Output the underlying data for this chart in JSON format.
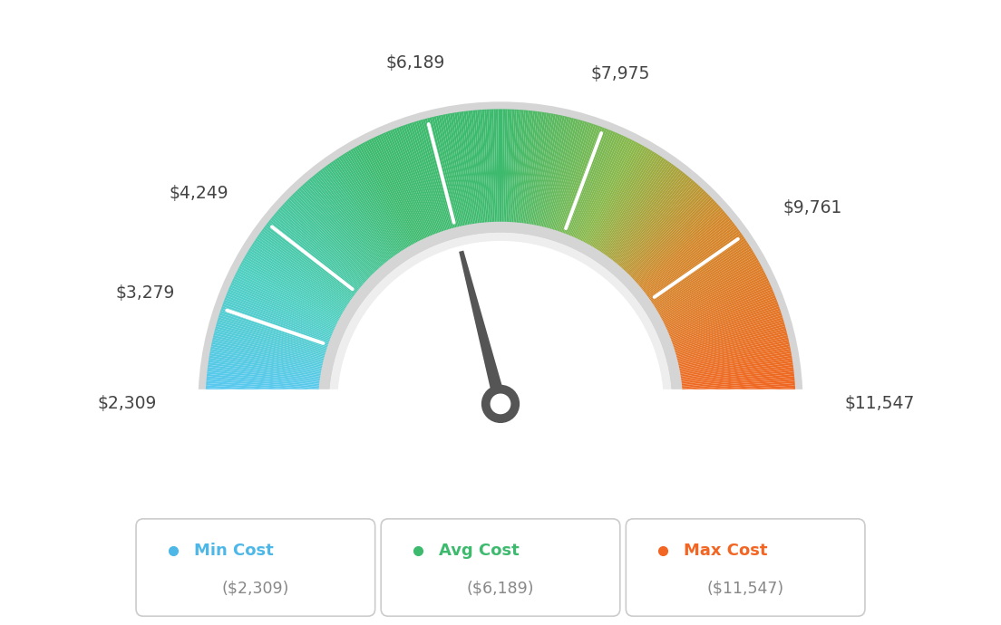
{
  "min_val": 2309,
  "avg_val": 6189,
  "max_val": 11547,
  "tick_labels": [
    "$2,309",
    "$3,279",
    "$4,249",
    "$6,189",
    "$7,975",
    "$9,761",
    "$11,547"
  ],
  "tick_values": [
    2309,
    3279,
    4249,
    6189,
    7975,
    9761,
    11547
  ],
  "legend_labels": [
    "Min Cost",
    "Avg Cost",
    "Max Cost"
  ],
  "legend_values": [
    "($2,309)",
    "($6,189)",
    "($11,547)"
  ],
  "legend_colors": [
    "#4db8e8",
    "#3dba6e",
    "#f26522"
  ],
  "color_stops": [
    [
      0.0,
      "#5bc8f5"
    ],
    [
      0.15,
      "#4ecfc0"
    ],
    [
      0.35,
      "#3dba6e"
    ],
    [
      0.5,
      "#3dba6e"
    ],
    [
      0.65,
      "#8ab84a"
    ],
    [
      0.78,
      "#d4872a"
    ],
    [
      1.0,
      "#f26522"
    ]
  ],
  "background_color": "#ffffff",
  "needle_color": "#555555",
  "needle_circle_color": "#555555",
  "inner_band_color": "#e8e8e8",
  "outer_border_color": "#d8d8d8"
}
